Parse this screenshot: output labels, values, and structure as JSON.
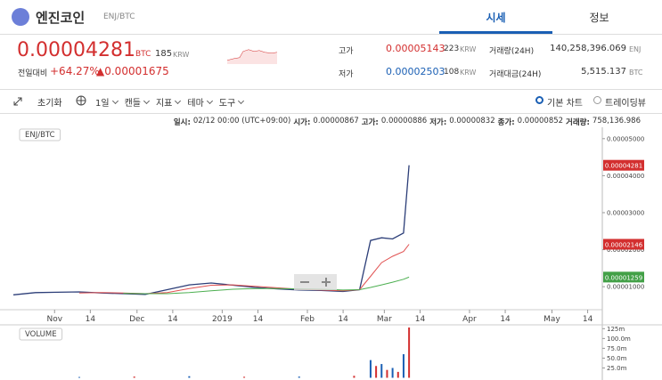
{
  "header": {
    "coin": "엔진코인",
    "pair": "ENJ/BTC",
    "tabs": [
      "시세",
      "정보"
    ]
  },
  "price": {
    "value": "0.00004281",
    "unit": "BTC",
    "krw": "185",
    "krw_unit": "KRW",
    "change_label": "전일대비",
    "change_pct": "+64.27%",
    "change_abs": "▲0.00001675"
  },
  "stats": [
    {
      "label": "고가",
      "value": "0.00005143",
      "krw": "223",
      "unit": "KRW"
    },
    {
      "label": "저가",
      "value": "0.00002503",
      "krw": "108",
      "unit": "KRW"
    },
    {
      "label": "거래량(24H)",
      "value": "140,258,396.069",
      "unit": "ENJ"
    },
    {
      "label": "거래대금(24H)",
      "value": "5,515.137",
      "unit": "BTC"
    }
  ],
  "toolbar": {
    "reset": "초기화",
    "menus": [
      "1일",
      "캔들",
      "지표",
      "테마",
      "도구"
    ],
    "chart_types": [
      "기본 차트",
      "트레이딩뷰"
    ]
  },
  "info": [
    {
      "label": "일시:",
      "value": "02/12 00:00 (UTC+09:00)"
    },
    {
      "label": "시가:",
      "value": "0.00000867"
    },
    {
      "label": "고가:",
      "value": "0.00000886"
    },
    {
      "label": "저가:",
      "value": "0.00000832"
    },
    {
      "label": "종가:",
      "value": "0.00000852"
    },
    {
      "label": "거래량:",
      "value": "758,136.986"
    }
  ],
  "chart_data": [
    {
      "type": "line",
      "label": "ENJ/BTC",
      "x": [
        16,
        24,
        32,
        40,
        48,
        56,
        64,
        72,
        80,
        88,
        96,
        104,
        112,
        120,
        128,
        136,
        142,
        146,
        150,
        154,
        158,
        160
      ],
      "xlim": [
        16,
        230
      ],
      "xticks": [
        {
          "value": 31,
          "label": "Nov"
        },
        {
          "value": 44,
          "label": "14"
        },
        {
          "value": 61,
          "label": "Dec"
        },
        {
          "value": 74,
          "label": "14"
        },
        {
          "value": 92,
          "label": "2019"
        },
        {
          "value": 105,
          "label": "14"
        },
        {
          "value": 123,
          "label": "Feb"
        },
        {
          "value": 136,
          "label": "14"
        },
        {
          "value": 151,
          "label": "Mar"
        },
        {
          "value": 164,
          "label": "14"
        },
        {
          "value": 182,
          "label": "Apr"
        },
        {
          "value": 195,
          "label": "14"
        },
        {
          "value": 212,
          "label": "May"
        },
        {
          "value": 225,
          "label": "14"
        }
      ],
      "ylim": [
        4.5e-06,
        5.26e-05
      ],
      "yticks": [
        {
          "value": 1e-05,
          "label": "0.00001000"
        },
        {
          "value": 2e-05,
          "label": "0.00002000"
        },
        {
          "value": 3e-05,
          "label": "0.00003000"
        },
        {
          "value": 4e-05,
          "label": "0.00004000"
        },
        {
          "value": 5e-05,
          "label": "0.00005000"
        }
      ],
      "series": [
        {
          "color": "#2c3e78",
          "values": [
            7.8e-06,
            8.4e-06,
            8.5e-06,
            8.6e-06,
            8.3e-06,
            8.1e-06,
            7.9e-06,
            9.2e-06,
            1.05e-05,
            1.1e-05,
            1.04e-05,
            9.8e-06,
            9.4e-06,
            9.1e-06,
            9e-06,
            8.7e-06,
            9.2e-06,
            2.25e-05,
            2.32e-05,
            2.29e-05,
            2.45e-05,
            4.28e-05
          ]
        },
        {
          "color": "#e05050",
          "values": [
            null,
            null,
            null,
            8.3e-06,
            8.4e-06,
            8.3e-06,
            8.1e-06,
            8.4e-06,
            9.5e-06,
            1.04e-05,
            1.05e-05,
            1.01e-05,
            9.7e-06,
            9.3e-06,
            9.1e-06,
            8.9e-06,
            9.2e-06,
            1.28e-05,
            1.65e-05,
            1.82e-05,
            1.95e-05,
            2.146e-05
          ]
        },
        {
          "color": "#4caf50",
          "values": [
            null,
            null,
            null,
            null,
            null,
            8.2e-06,
            8.1e-06,
            8.1e-06,
            8.4e-06,
            8.9e-06,
            9.3e-06,
            9.5e-06,
            9.5e-06,
            9.4e-06,
            9.3e-06,
            9.1e-06,
            9.2e-06,
            9.8e-06,
            1.05e-05,
            1.12e-05,
            1.2e-05,
            1.259e-05
          ]
        }
      ],
      "tags": [
        {
          "value": 4.281e-05,
          "label": "0.00004281",
          "color": "#d32f2f"
        },
        {
          "value": 2.146e-05,
          "label": "0.00002146",
          "color": "#d32f2f"
        },
        {
          "value": 1.259e-05,
          "label": "0.00001259",
          "color": "#43a047"
        }
      ]
    },
    {
      "type": "bar",
      "label": "VOLUME",
      "x": [
        40,
        60,
        80,
        100,
        120,
        140,
        146,
        148,
        150,
        152,
        154,
        156,
        158,
        160
      ],
      "values": [
        2000000,
        3000000,
        4000000,
        2500000,
        3000000,
        5000000,
        45000000,
        30000000,
        35000000,
        20000000,
        25000000,
        15000000,
        60000000,
        128000000
      ],
      "xlim": [
        16,
        230
      ],
      "ylim": [
        0,
        128000000
      ],
      "yticks": [
        {
          "value": 25000000,
          "label": "25.0m"
        },
        {
          "value": 50000000,
          "label": "50.0m"
        },
        {
          "value": 75000000,
          "label": "75.0m"
        },
        {
          "value": 100000000,
          "label": "100.0m"
        },
        {
          "value": 125000000,
          "label": "125m"
        }
      ]
    }
  ]
}
